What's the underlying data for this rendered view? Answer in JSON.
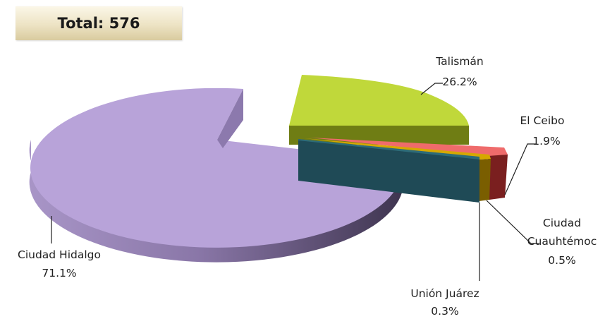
{
  "header": {
    "total_label": "Total: 576"
  },
  "chart_data": {
    "type": "pie",
    "title": "",
    "slices": [
      {
        "name": "Talismán",
        "value": 26.2,
        "label": "26.2%",
        "color": "#c0d83a"
      },
      {
        "name": "El Ceibo",
        "value": 1.9,
        "label": "1.9%",
        "color": "#ef6b6b"
      },
      {
        "name": "Ciudad Cuauhtémoc",
        "value": 0.5,
        "label": "0.5%",
        "color": "#d6a800"
      },
      {
        "name": "Unión Juárez",
        "value": 0.3,
        "label": "0.3%",
        "color": "#2d6b78"
      },
      {
        "name": "Ciudad Hidalgo",
        "value": 71.1,
        "label": "71.1%",
        "color": "#b8a3d9"
      }
    ]
  }
}
